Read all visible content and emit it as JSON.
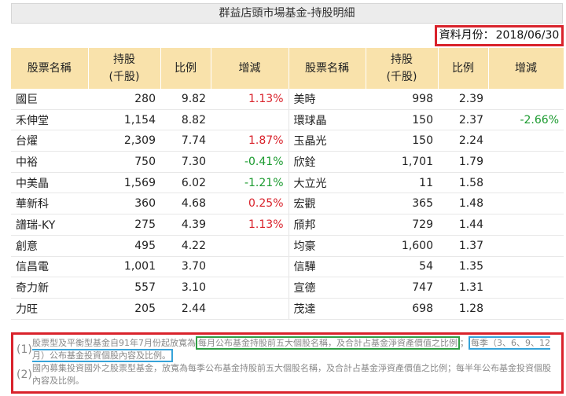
{
  "page": {
    "title": "群益店頭市場基金-持股明細",
    "date_label": "資料月份：",
    "date_value": "2018/06/30"
  },
  "columns": [
    "股票名稱",
    "持股\n(千股)",
    "比例",
    "增減",
    "股票名稱",
    "持股\n(千股)",
    "比例",
    "增減"
  ],
  "rows": [
    {
      "l_name": "國巨",
      "l_shares": "280",
      "l_ratio": "9.82",
      "l_change": "1.13%",
      "l_dir": "up",
      "r_name": "美時",
      "r_shares": "998",
      "r_ratio": "2.39",
      "r_change": "",
      "r_dir": ""
    },
    {
      "l_name": "禾伸堂",
      "l_shares": "1,154",
      "l_ratio": "8.82",
      "l_change": "",
      "l_dir": "",
      "r_name": "環球晶",
      "r_shares": "150",
      "r_ratio": "2.37",
      "r_change": "-2.66%",
      "r_dir": "down"
    },
    {
      "l_name": "台燿",
      "l_shares": "2,309",
      "l_ratio": "7.74",
      "l_change": "1.87%",
      "l_dir": "up",
      "r_name": "玉晶光",
      "r_shares": "150",
      "r_ratio": "2.24",
      "r_change": "",
      "r_dir": ""
    },
    {
      "l_name": "中裕",
      "l_shares": "750",
      "l_ratio": "7.30",
      "l_change": "-0.41%",
      "l_dir": "down",
      "r_name": "欣銓",
      "r_shares": "1,701",
      "r_ratio": "1.79",
      "r_change": "",
      "r_dir": ""
    },
    {
      "l_name": "中美晶",
      "l_shares": "1,569",
      "l_ratio": "6.02",
      "l_change": "-1.21%",
      "l_dir": "down",
      "r_name": "大立光",
      "r_shares": "11",
      "r_ratio": "1.58",
      "r_change": "",
      "r_dir": ""
    },
    {
      "l_name": "華新科",
      "l_shares": "360",
      "l_ratio": "4.68",
      "l_change": "0.25%",
      "l_dir": "up",
      "r_name": "宏觀",
      "r_shares": "365",
      "r_ratio": "1.48",
      "r_change": "",
      "r_dir": ""
    },
    {
      "l_name": "譜瑞-KY",
      "l_shares": "275",
      "l_ratio": "4.39",
      "l_change": "1.13%",
      "l_dir": "up",
      "r_name": "頎邦",
      "r_shares": "729",
      "r_ratio": "1.44",
      "r_change": "",
      "r_dir": ""
    },
    {
      "l_name": "創意",
      "l_shares": "495",
      "l_ratio": "4.22",
      "l_change": "",
      "l_dir": "",
      "r_name": "均豪",
      "r_shares": "1,600",
      "r_ratio": "1.37",
      "r_change": "",
      "r_dir": ""
    },
    {
      "l_name": "信昌電",
      "l_shares": "1,001",
      "l_ratio": "3.70",
      "l_change": "",
      "l_dir": "",
      "r_name": "信驊",
      "r_shares": "54",
      "r_ratio": "1.35",
      "r_change": "",
      "r_dir": ""
    },
    {
      "l_name": "奇力新",
      "l_shares": "557",
      "l_ratio": "3.10",
      "l_change": "",
      "l_dir": "",
      "r_name": "宣德",
      "r_shares": "747",
      "r_ratio": "1.31",
      "r_change": "",
      "r_dir": ""
    },
    {
      "l_name": "力旺",
      "l_shares": "205",
      "l_ratio": "2.44",
      "l_change": "",
      "l_dir": "",
      "r_name": "茂達",
      "r_shares": "698",
      "r_ratio": "1.28",
      "r_change": "",
      "r_dir": ""
    }
  ],
  "notes": {
    "n1_num": "(1)",
    "n1_a": "股票型及平衡型基金自91年7月份起放寬為",
    "n1_b": "每月公布基金持股前五大個股名稱，及合計占基金淨資產價值之比例",
    "n1_c": "；",
    "n1_d": "每季（3、6、9、12月）公布基金投資個股內容及比例。",
    "n2_num": "(2)",
    "n2_text": "國內募集投資國外之股票型基金，放寬為每季公布基金持股前五大個股名稱，及合計占基金淨資產價值之比例；每半年公布基金投資個股內容及比例。"
  },
  "colors": {
    "header_bg": "#f9e2ab",
    "increase": "#d9222b",
    "decrease": "#1a9a2e",
    "highlight_red": "#d9222b",
    "highlight_green": "#2f9e44",
    "highlight_blue": "#36a3d9"
  }
}
